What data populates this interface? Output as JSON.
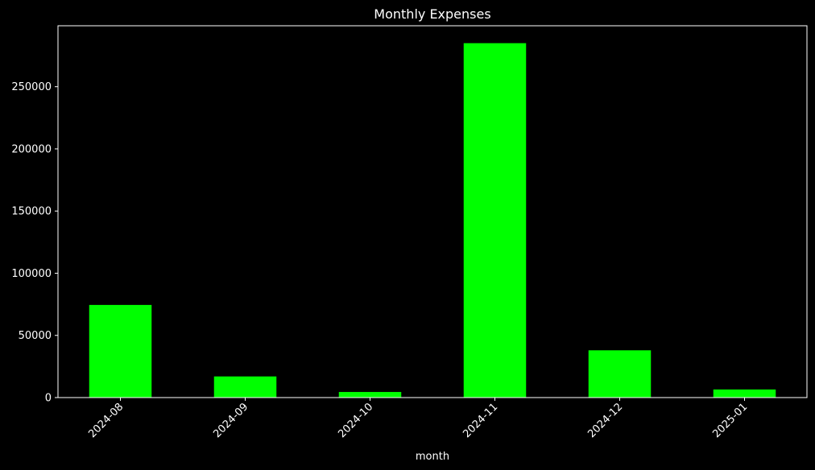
{
  "chart_data": {
    "type": "bar",
    "title": "Monthly Expenses",
    "xlabel": "month",
    "ylabel": "",
    "categories": [
      "2024-08",
      "2024-09",
      "2024-10",
      "2024-11",
      "2024-12",
      "2025-01"
    ],
    "values": [
      74500,
      17000,
      4500,
      285000,
      38000,
      6500
    ],
    "ylim": [
      0,
      299000
    ],
    "yticks": [
      0,
      50000,
      100000,
      150000,
      200000,
      250000
    ],
    "ytick_labels": [
      "0",
      "50000",
      "100000",
      "150000",
      "200000",
      "250000"
    ],
    "grid": false,
    "colors": {
      "background": "#000000",
      "bar": "#00ff00",
      "axis": "#ffffff",
      "text": "#ffffff"
    }
  }
}
